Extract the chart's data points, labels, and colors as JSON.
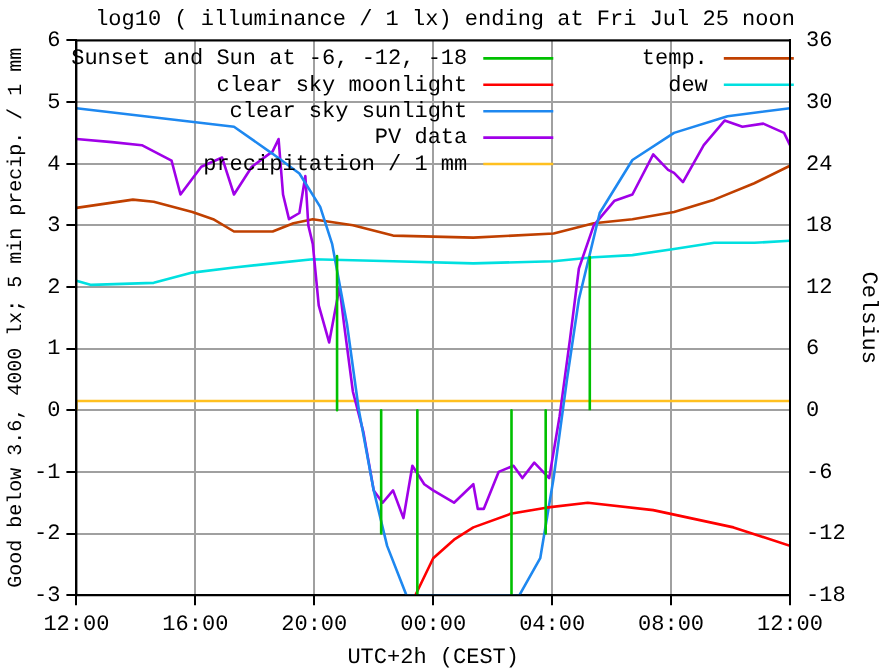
{
  "chart_data": {
    "type": "line",
    "title": "log10 ( illuminance / 1 lx) ending at Fri Jul 25 noon",
    "xlabel": "UTC+2h (CEST)",
    "ylabel": "Good below 3.6, 4000 lx; 5 min precip. / 1 mm",
    "y2label": "Celsius",
    "xlim": [
      "--07-24T12:00",
      "--07-25T12:00"
    ],
    "xticks": [
      {
        "value": "--07-24T12:00",
        "label": "12:00"
      },
      {
        "value": "--07-24T16:00",
        "label": "16:00"
      },
      {
        "value": "--07-24T20:00",
        "label": "20:00"
      },
      {
        "value": "--07-25T00:00",
        "label": "00:00"
      },
      {
        "value": "--07-25T04:00",
        "label": "04:00"
      },
      {
        "value": "--07-25T08:00",
        "label": "08:00"
      },
      {
        "value": "--07-25T12:00",
        "label": "12:00"
      }
    ],
    "ylim": [
      -3,
      6
    ],
    "yticks": [
      -3,
      -2,
      -1,
      0,
      1,
      2,
      3,
      4,
      5,
      6
    ],
    "y2lim": [
      -18,
      36
    ],
    "y2ticks": [
      -18,
      -12,
      -6,
      0,
      6,
      12,
      18,
      24,
      30,
      36
    ],
    "grid": true,
    "legend": "top",
    "marker": "none",
    "line_style": "solid",
    "series": [
      {
        "name": "Sunset and Sun at -6, -12, -18",
        "color": "#00c000",
        "x": [
          "--07-24T20:46",
          "--07-24T20:46"
        ],
        "values": [
          2.5,
          0
        ]
      },
      {
        "color": "#00c000",
        "x": [
          "--07-24T22:15",
          "--07-24T22:15"
        ],
        "values": [
          0,
          -2
        ]
      },
      {
        "color": "#00c000",
        "x": [
          "--07-24T23:28",
          "--07-24T23:28"
        ],
        "values": [
          0,
          -3
        ]
      },
      {
        "color": "#00c000",
        "x": [
          "--07-25T02:38",
          "--07-25T02:38"
        ],
        "values": [
          0,
          -3
        ]
      },
      {
        "color": "#00c000",
        "x": [
          "--07-25T03:47",
          "--07-25T03:47"
        ],
        "values": [
          0,
          -2
        ]
      },
      {
        "color": "#00c000",
        "x": [
          "--07-25T05:16",
          "--07-25T05:16"
        ],
        "values": [
          0,
          2.5
        ]
      },
      {
        "name": "clear sky moonlight",
        "color": "#ff0000",
        "x": [
          "--07-24T23:24",
          "--07-25T00:00",
          "--07-25T00:42",
          "--07-25T01:21",
          "--07-25T02:36",
          "--07-25T03:48",
          "--07-25T05:12",
          "--07-25T07:24",
          "--07-25T10:06",
          "--07-25T12:00"
        ],
        "values": [
          -3,
          -2.4,
          -2.1,
          -1.9,
          -1.68,
          -1.58,
          -1.5,
          -1.62,
          -1.9,
          -2.2
        ]
      },
      {
        "name": "clear sky sunlight",
        "color": "#1e88f0",
        "x": [
          "--07-24T12:00",
          "--07-24T17:18",
          "--07-24T18:36",
          "--07-24T19:30",
          "--07-24T20:12",
          "--07-24T20:36",
          "--07-24T21:06",
          "--07-24T21:30",
          "--07-24T22:00",
          "--07-24T22:27",
          "--07-24T23:06",
          "--07-25T02:54",
          "--07-25T03:36",
          "--07-25T04:03",
          "--07-25T04:30",
          "--07-25T04:54",
          "--07-25T05:36",
          "--07-25T06:42",
          "--07-25T08:06",
          "--07-25T09:54",
          "--07-25T12:00"
        ],
        "values": [
          4.9,
          4.6,
          4.16,
          3.84,
          3.3,
          2.7,
          1.4,
          0,
          -1.3,
          -2.2,
          -3,
          -3,
          -2.4,
          -1.1,
          0.5,
          1.8,
          3.2,
          4.06,
          4.5,
          4.77,
          4.9
        ]
      },
      {
        "name": "PV data",
        "color": "#a000e8",
        "x": [
          "--07-24T12:00",
          "--07-24T13:12",
          "--07-24T14:12",
          "--07-24T15:12",
          "--07-24T15:30",
          "--07-24T16:12",
          "--07-24T16:54",
          "--07-24T17:18",
          "--07-24T17:54",
          "--07-24T18:36",
          "--07-24T18:48",
          "--07-24T18:57",
          "--07-24T19:09",
          "--07-24T19:30",
          "--07-24T19:42",
          "--07-24T19:48",
          "--07-24T19:57",
          "--07-24T20:09",
          "--07-24T20:30",
          "--07-24T20:51",
          "--07-24T21:00",
          "--07-24T21:18",
          "--07-24T21:39",
          "--07-24T22:00",
          "--07-24T22:18",
          "--07-24T22:39",
          "--07-24T23:00",
          "--07-24T23:18",
          "--07-24T23:42",
          "--07-25T00:00",
          "--07-25T00:42",
          "--07-25T01:21",
          "--07-25T01:30",
          "--07-25T01:42",
          "--07-25T02:12",
          "--07-25T02:42",
          "--07-25T03:00",
          "--07-25T03:24",
          "--07-25T03:54",
          "--07-25T04:15",
          "--07-25T04:36",
          "--07-25T04:54",
          "--07-25T05:24",
          "--07-25T06:06",
          "--07-25T06:42",
          "--07-25T07:24",
          "--07-25T07:54",
          "--07-25T08:06",
          "--07-25T08:24",
          "--07-25T09:06",
          "--07-25T09:48",
          "--07-25T10:24",
          "--07-25T11:06",
          "--07-25T11:48",
          "--07-25T12:00"
        ],
        "values": [
          4.4,
          4.35,
          4.3,
          4.05,
          3.5,
          3.95,
          4.1,
          3.5,
          3.95,
          4.2,
          4.4,
          3.5,
          3.1,
          3.2,
          3.8,
          3.0,
          2.7,
          1.7,
          1.1,
          2.0,
          1.4,
          0.3,
          -0.35,
          -1.3,
          -1.5,
          -1.3,
          -1.75,
          -0.9,
          -1.2,
          -1.3,
          -1.5,
          -1.2,
          -1.6,
          -1.6,
          -1.0,
          -0.9,
          -1.1,
          -0.85,
          -1.1,
          -0.1,
          1.15,
          2.3,
          3.0,
          3.4,
          3.5,
          4.15,
          3.9,
          3.85,
          3.7,
          4.3,
          4.7,
          4.6,
          4.65,
          4.5,
          4.3
        ]
      },
      {
        "name": "precipitation / 1 mm",
        "type": "step",
        "color": "#ffc020",
        "x": [
          "--07-24T12:00",
          "--07-24T15:00",
          "--07-25T12:00"
        ],
        "values": [
          0,
          0.15,
          0.15
        ]
      },
      {
        "name": "temp.",
        "color": "#c04000",
        "axis": "y2",
        "x": [
          "--07-24T12:00",
          "--07-24T13:54",
          "--07-24T14:36",
          "--07-24T15:54",
          "--07-24T16:36",
          "--07-24T17:18",
          "--07-24T18:36",
          "--07-24T19:18",
          "--07-24T19:57",
          "--07-24T21:18",
          "--07-24T22:39",
          "--07-25T01:21",
          "--07-25T04:03",
          "--07-25T05:24",
          "--07-25T06:42",
          "--07-25T08:06",
          "--07-25T09:27",
          "--07-25T10:48",
          "--07-25T12:00"
        ],
        "values": [
          19.7,
          20.5,
          20.3,
          19.3,
          18.6,
          17.4,
          17.4,
          18.2,
          18.6,
          18.0,
          17.0,
          16.8,
          17.2,
          18.2,
          18.6,
          19.3,
          20.5,
          22.1,
          23.8
        ]
      },
      {
        "name": "dew",
        "color": "#00e0e0",
        "axis": "y2",
        "x": [
          "--07-24T12:00",
          "--07-24T12:30",
          "--07-24T14:36",
          "--07-24T15:54",
          "--07-24T17:18",
          "--07-24T18:36",
          "--07-24T19:57",
          "--07-24T22:39",
          "--07-25T01:21",
          "--07-25T04:03",
          "--07-25T05:24",
          "--07-25T06:42",
          "--07-25T08:06",
          "--07-25T09:27",
          "--07-25T10:48",
          "--07-25T12:00"
        ],
        "values": [
          12.6,
          12.2,
          12.4,
          13.4,
          13.9,
          14.3,
          14.7,
          14.5,
          14.3,
          14.5,
          14.9,
          15.1,
          15.7,
          16.3,
          16.3,
          16.5
        ]
      }
    ]
  }
}
